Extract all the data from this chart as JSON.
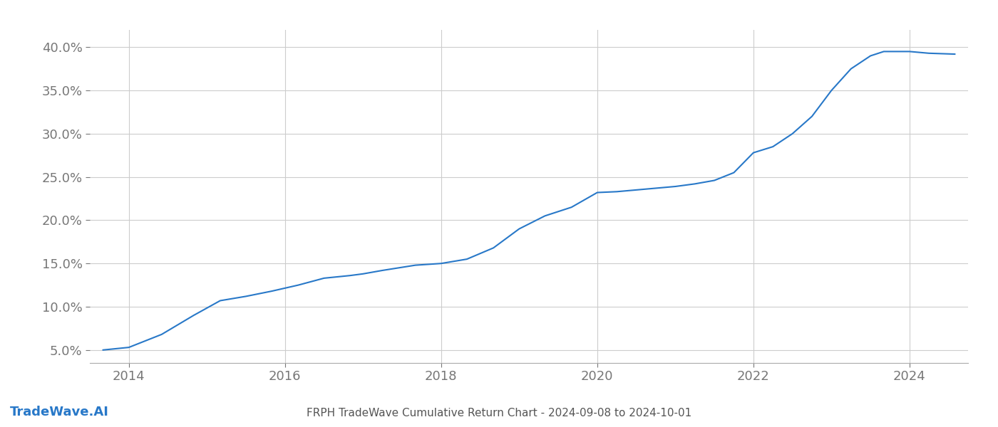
{
  "title": "FRPH TradeWave Cumulative Return Chart - 2024-09-08 to 2024-10-01",
  "watermark": "TradeWave.AI",
  "line_color": "#2878c8",
  "line_width": 1.5,
  "background_color": "#ffffff",
  "grid_color": "#cccccc",
  "x_years": [
    2013.67,
    2014.0,
    2014.42,
    2014.83,
    2015.17,
    2015.5,
    2015.83,
    2016.17,
    2016.5,
    2016.83,
    2017.0,
    2017.25,
    2017.67,
    2018.0,
    2018.33,
    2018.67,
    2019.0,
    2019.33,
    2019.67,
    2020.0,
    2020.25,
    2020.5,
    2020.75,
    2021.0,
    2021.25,
    2021.5,
    2021.75,
    2022.0,
    2022.25,
    2022.5,
    2022.75,
    2023.0,
    2023.25,
    2023.5,
    2023.67,
    2024.0,
    2024.25,
    2024.58
  ],
  "y_values": [
    5.0,
    5.3,
    6.8,
    9.0,
    10.7,
    11.2,
    11.8,
    12.5,
    13.3,
    13.6,
    13.8,
    14.2,
    14.8,
    15.0,
    15.5,
    16.8,
    19.0,
    20.5,
    21.5,
    23.2,
    23.3,
    23.5,
    23.7,
    23.9,
    24.2,
    24.6,
    25.5,
    27.8,
    28.5,
    30.0,
    32.0,
    35.0,
    37.5,
    39.0,
    39.5,
    39.5,
    39.3,
    39.2
  ],
  "xlim": [
    2013.5,
    2024.75
  ],
  "ylim": [
    3.5,
    42.0
  ],
  "xticks": [
    2014,
    2016,
    2018,
    2020,
    2022,
    2024
  ],
  "yticks": [
    5.0,
    10.0,
    15.0,
    20.0,
    25.0,
    30.0,
    35.0,
    40.0
  ],
  "tick_fontsize": 13,
  "watermark_fontsize": 13,
  "title_fontsize": 11
}
